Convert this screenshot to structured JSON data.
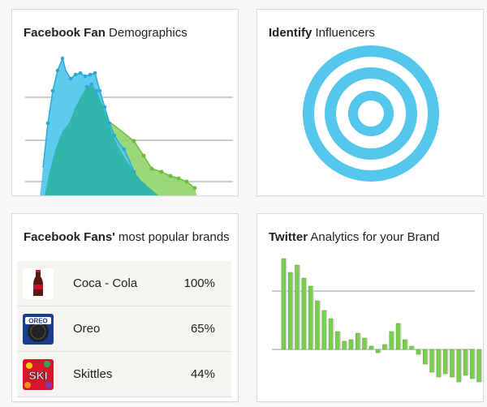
{
  "cards": {
    "demographics": {
      "title_bold": "Facebook Fan",
      "title_rest": " Demographics"
    },
    "influencers": {
      "title_bold": "Identify",
      "title_rest": " Influencers"
    },
    "brands": {
      "title_bold": "Facebook Fans'",
      "title_rest": " most popular brands"
    },
    "twitter": {
      "title_bold": "Twitter",
      "title_rest": " Analytics for your Brand"
    }
  },
  "brands": [
    {
      "name": "Coca - Cola",
      "pct": "100%",
      "logo": "coca-cola-bottle-icon",
      "logo_color": "#c8102e"
    },
    {
      "name": "Oreo",
      "pct": "65%",
      "logo": "oreo-cookie-icon",
      "logo_color": "#1a3d8f"
    },
    {
      "name": "Skittles",
      "pct": "44%",
      "logo": "skittles-logo-icon",
      "logo_color": "#d7182a"
    }
  ],
  "colors": {
    "blue": "#55c7ec",
    "teal": "#2fb3a5",
    "green": "#7ccf4e",
    "grid": "#9a9a9a"
  }
}
